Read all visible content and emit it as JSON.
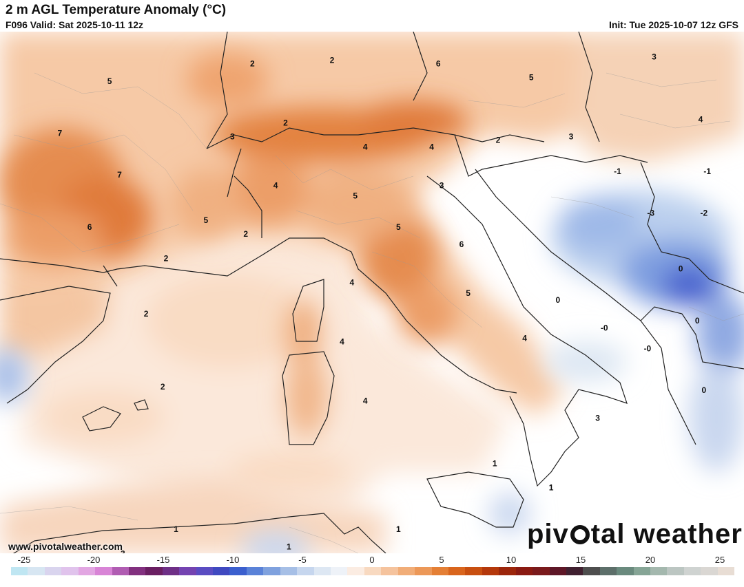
{
  "header": {
    "title": "2 m AGL Temperature Anomaly (°C)",
    "valid": "F096 Valid: Sat 2025-10-11 12z",
    "init": "Init: Tue 2025-10-07 12z GFS"
  },
  "map": {
    "contour_labels": [
      {
        "text": "5",
        "lon": 0.9,
        "lat": 47.0
      },
      {
        "text": "2",
        "lon": 5.2,
        "lat": 47.5
      },
      {
        "text": "2",
        "lon": 7.6,
        "lat": 47.6
      },
      {
        "text": "6",
        "lon": 10.8,
        "lat": 47.5
      },
      {
        "text": "5",
        "lon": 13.6,
        "lat": 47.1
      },
      {
        "text": "3",
        "lon": 17.3,
        "lat": 47.7
      },
      {
        "text": "2",
        "lon": 6.2,
        "lat": 45.8
      },
      {
        "text": "7",
        "lon": -0.6,
        "lat": 45.5
      },
      {
        "text": "3",
        "lon": 4.6,
        "lat": 45.4
      },
      {
        "text": "7",
        "lon": 1.2,
        "lat": 44.3
      },
      {
        "text": "4",
        "lon": 5.9,
        "lat": 44.0
      },
      {
        "text": "4",
        "lon": 8.6,
        "lat": 45.1
      },
      {
        "text": "4",
        "lon": 10.6,
        "lat": 45.1
      },
      {
        "text": "2",
        "lon": 12.6,
        "lat": 45.3
      },
      {
        "text": "3",
        "lon": 14.8,
        "lat": 45.4
      },
      {
        "text": "4",
        "lon": 18.7,
        "lat": 45.9
      },
      {
        "text": "6",
        "lon": 0.3,
        "lat": 42.8
      },
      {
        "text": "5",
        "lon": 3.8,
        "lat": 43.0
      },
      {
        "text": "2",
        "lon": 5.0,
        "lat": 42.6
      },
      {
        "text": "5",
        "lon": 8.3,
        "lat": 43.7
      },
      {
        "text": "3",
        "lon": 10.9,
        "lat": 44.0
      },
      {
        "text": "-1",
        "lon": 16.2,
        "lat": 44.4
      },
      {
        "text": "-1",
        "lon": 18.9,
        "lat": 44.4
      },
      {
        "text": "5",
        "lon": 9.6,
        "lat": 42.8
      },
      {
        "text": "6",
        "lon": 11.5,
        "lat": 42.3
      },
      {
        "text": "-3",
        "lon": 17.2,
        "lat": 43.2
      },
      {
        "text": "-2",
        "lon": 18.8,
        "lat": 43.2
      },
      {
        "text": "2",
        "lon": 2.6,
        "lat": 41.9
      },
      {
        "text": "4",
        "lon": 8.2,
        "lat": 41.2
      },
      {
        "text": "0",
        "lon": 18.1,
        "lat": 41.6
      },
      {
        "text": "5",
        "lon": 11.7,
        "lat": 40.9
      },
      {
        "text": "0",
        "lon": 14.4,
        "lat": 40.7
      },
      {
        "text": "2",
        "lon": 2.0,
        "lat": 40.3
      },
      {
        "text": "-0",
        "lon": 15.8,
        "lat": 39.9
      },
      {
        "text": "0",
        "lon": 18.6,
        "lat": 40.1
      },
      {
        "text": "4",
        "lon": 7.9,
        "lat": 39.5
      },
      {
        "text": "4",
        "lon": 13.4,
        "lat": 39.6
      },
      {
        "text": "-0",
        "lon": 17.1,
        "lat": 39.3
      },
      {
        "text": "2",
        "lon": 2.5,
        "lat": 38.2
      },
      {
        "text": "4",
        "lon": 8.6,
        "lat": 37.8
      },
      {
        "text": "0",
        "lon": 18.8,
        "lat": 38.1
      },
      {
        "text": "3",
        "lon": 15.6,
        "lat": 37.3
      },
      {
        "text": "1",
        "lon": 12.5,
        "lat": 36.0
      },
      {
        "text": "1",
        "lon": 14.2,
        "lat": 35.3
      },
      {
        "text": "1",
        "lon": 2.9,
        "lat": 34.1
      },
      {
        "text": "1",
        "lon": 9.6,
        "lat": 34.1
      },
      {
        "text": "1",
        "lon": 6.3,
        "lat": 33.6
      },
      {
        "text": "3",
        "lon": 1.3,
        "lat": 33.4
      }
    ]
  },
  "footer": {
    "website": "www.pivotalweather.com",
    "brand_left": "piv",
    "brand_right": "tal weather",
    "brand_icon": "gear-icon"
  },
  "colorbar": {
    "unit": "°C",
    "tick_labels": [
      "-25",
      "-20",
      "-15",
      "-10",
      "-5",
      "0",
      "5",
      "10",
      "15",
      "20",
      "25"
    ],
    "colors": [
      "#bfe6f2",
      "#d7e6f2",
      "#d9d4ee",
      "#e0c3ec",
      "#e2a6e2",
      "#d884d6",
      "#b05cb2",
      "#82307f",
      "#6a1f62",
      "#6e2f86",
      "#7443b1",
      "#5a4cc2",
      "#3f49c0",
      "#3b5fce",
      "#5a82d8",
      "#7fa1de",
      "#a6bfe6",
      "#c6d6ee",
      "#dde7f3",
      "#eef2f8",
      "#fbece2",
      "#f8d9c0",
      "#f5c39d",
      "#f1ad78",
      "#ec9858",
      "#e47f35",
      "#d9651d",
      "#c84f10",
      "#b4380b",
      "#9c260b",
      "#8a1a12",
      "#7a1a1c",
      "#5e1727",
      "#402030",
      "#4e4e4e",
      "#5d6f6a",
      "#6a8a7e",
      "#86a596",
      "#a4b8ae",
      "#bcc6c2",
      "#cfd3d1",
      "#dad7d3",
      "#e8ddd4"
    ]
  }
}
